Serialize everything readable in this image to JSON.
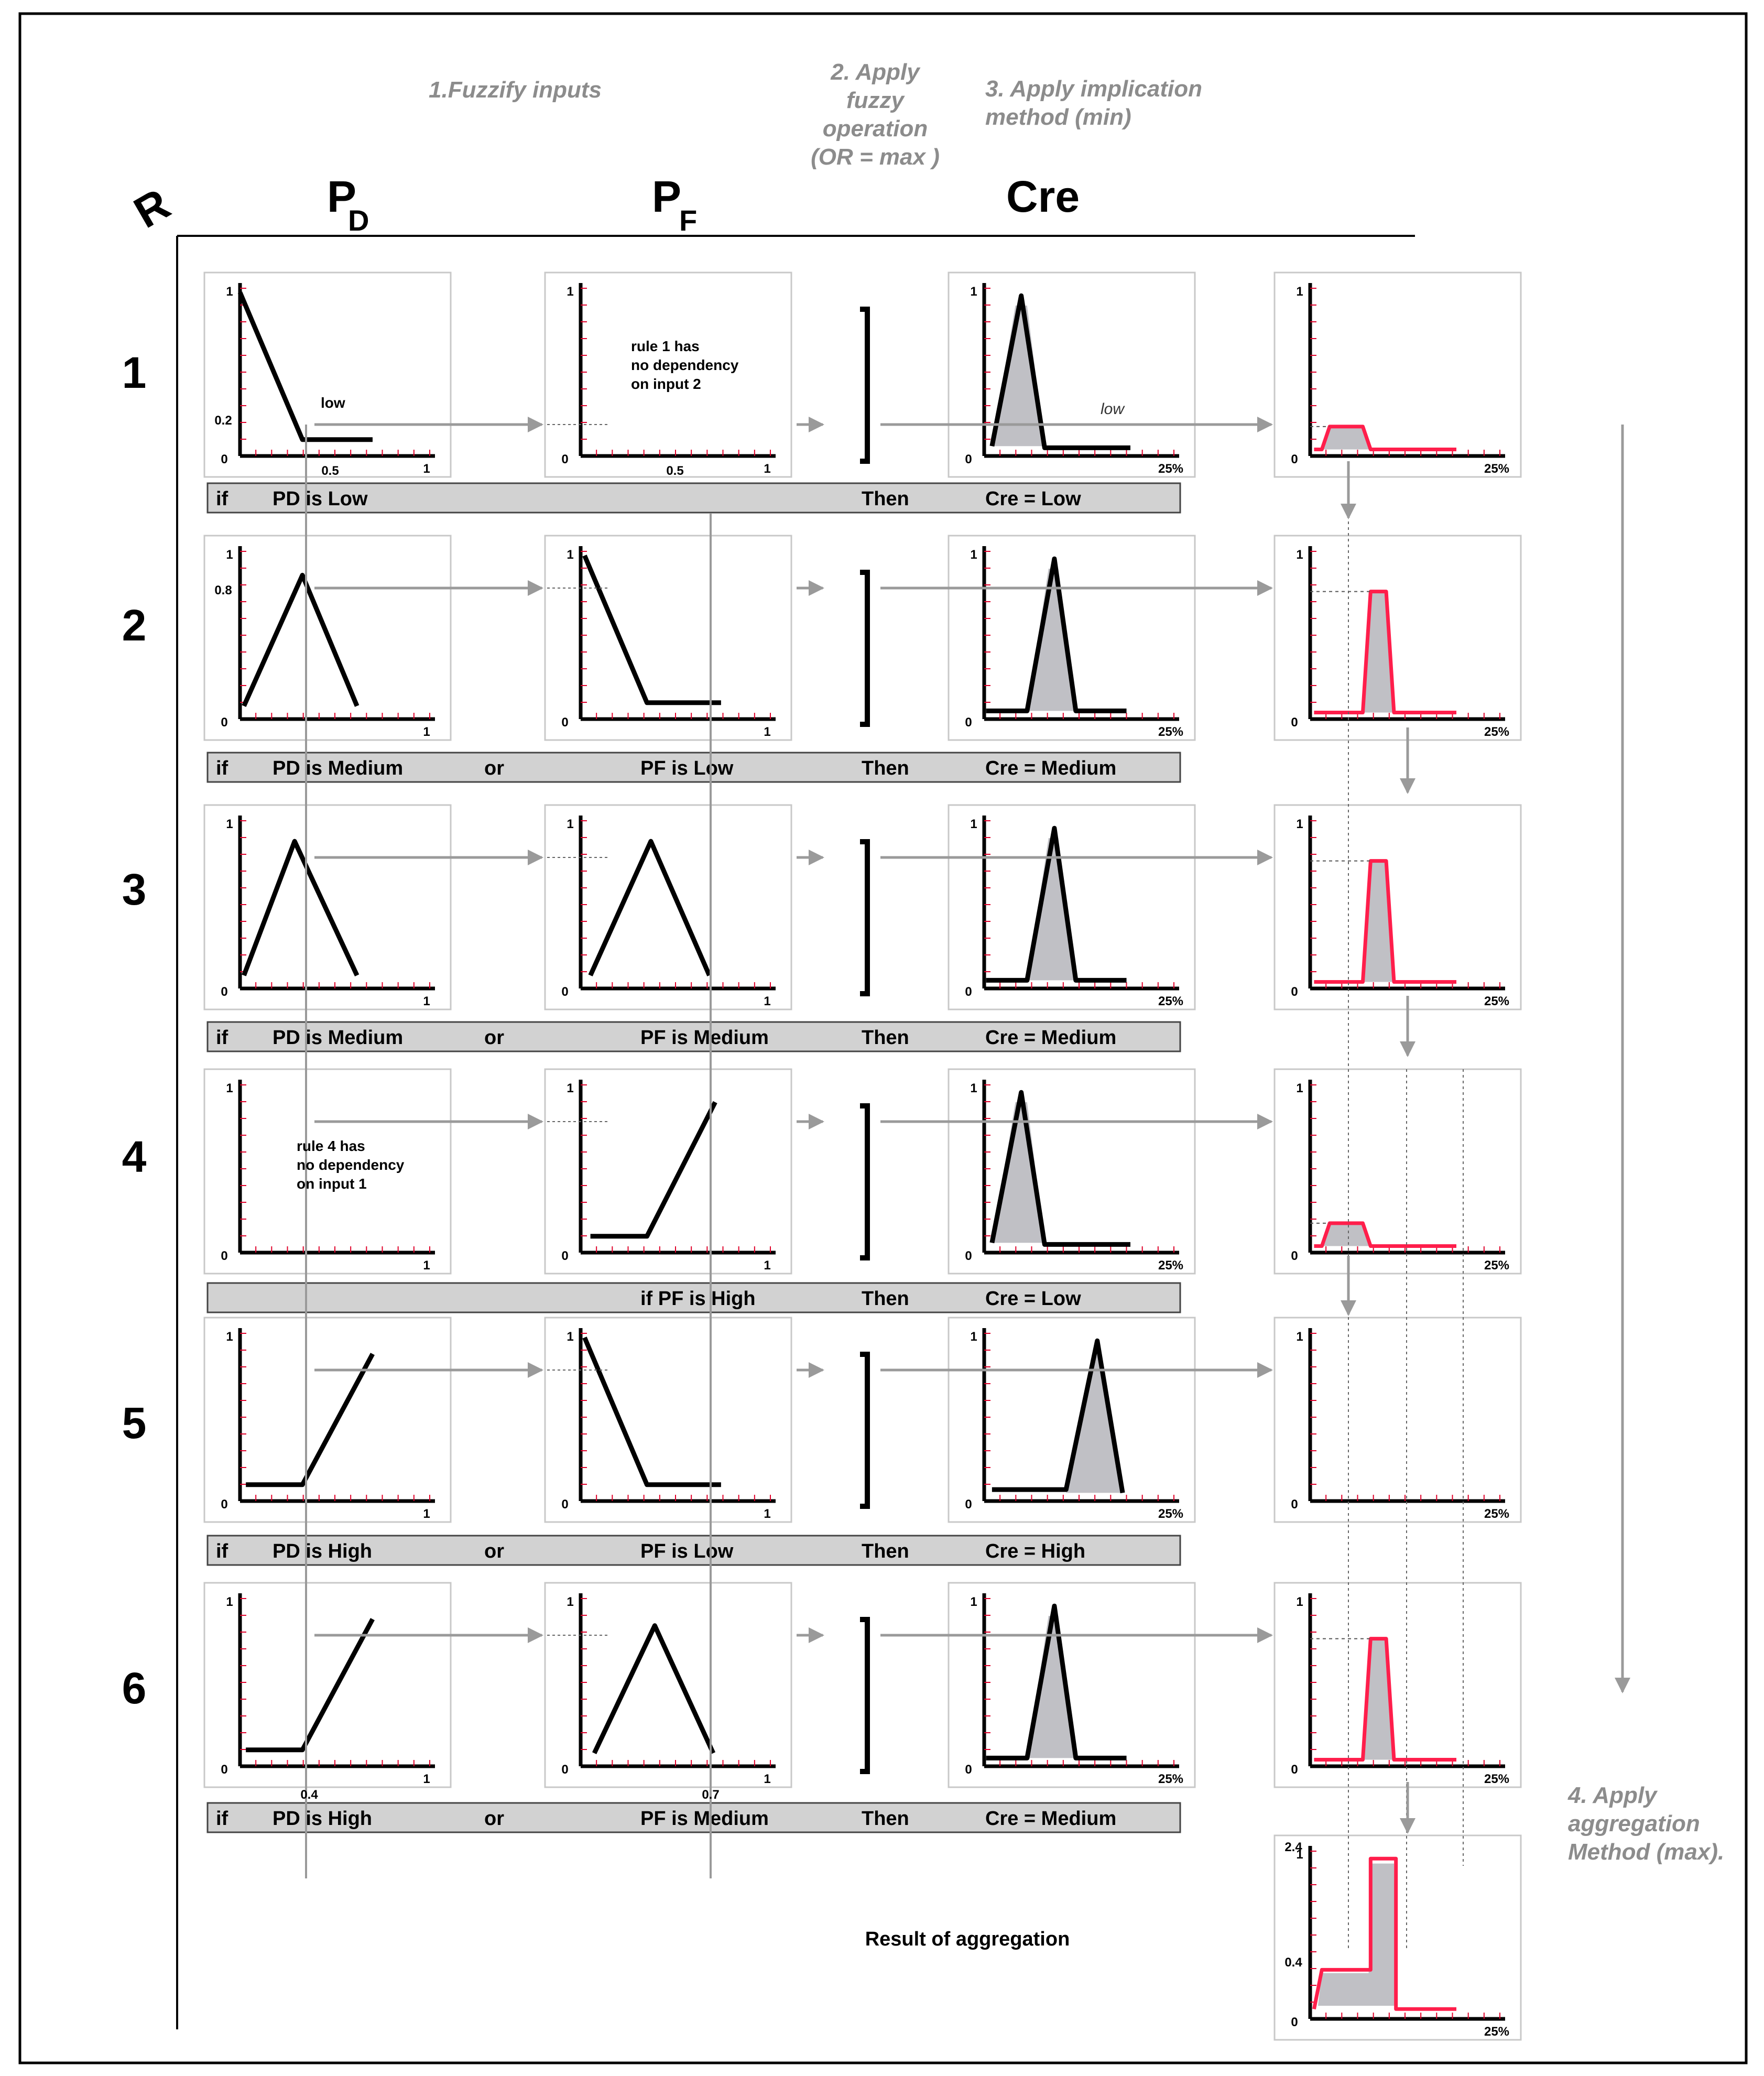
{
  "headers": {
    "step1": "1.Fuzzify inputs",
    "step2_lines": [
      "2. Apply",
      "fuzzy",
      "operation",
      "(OR = max )"
    ],
    "step3_lines": [
      "3. Apply implication",
      "method (min)"
    ],
    "step4_lines": [
      "4. Apply",
      "aggregation",
      "Method (max)."
    ]
  },
  "columns": {
    "rule": "R",
    "pd_main": "P",
    "pd_sub": "D",
    "pf_main": "P",
    "pf_sub": "F",
    "cre": "Cre"
  },
  "rule_numbers": [
    "1",
    "2",
    "3",
    "4",
    "5",
    "6"
  ],
  "rules": [
    {
      "if": "if",
      "pd": "PD is Low",
      "or": "",
      "pf": "",
      "then": "Then",
      "cre": "Cre = Low"
    },
    {
      "if": "if",
      "pd": "PD is Medium",
      "or": "or",
      "pf": "PF is Low",
      "then": "Then",
      "cre": "Cre = Medium"
    },
    {
      "if": "if",
      "pd": "PD is Medium",
      "or": "or",
      "pf": "PF is Medium",
      "then": "Then",
      "cre": "Cre = Medium"
    },
    {
      "if": "",
      "pd": "",
      "or": "",
      "pf": "if PF is High",
      "then": "Then",
      "cre": "Cre = Low"
    },
    {
      "if": "if",
      "pd": "PD is High",
      "or": "or",
      "pf": "PF is Low",
      "then": "Then",
      "cre": "Cre = High"
    },
    {
      "if": "if",
      "pd": "PD is High",
      "or": "or",
      "pf": "PF is Medium",
      "then": "Then",
      "cre": "Cre = Medium"
    }
  ],
  "ticks": {
    "zero": "0",
    "one": "1",
    "half": "0.5",
    "pct": "25%",
    "pd1_val": "0.2",
    "pd2_val": "0.8",
    "in1": "0.4",
    "in2": "0.7",
    "agg_top": "2.4",
    "agg_val": "0.4"
  },
  "notes": {
    "rule1": [
      "rule 1 has",
      "no dependency",
      "on input 2"
    ],
    "rule4": [
      "rule 4 has",
      "no dependency",
      "on input 1"
    ],
    "low_pd": "low",
    "low_cre": "low"
  },
  "result_label": "Result of aggregation",
  "colors": {
    "output_line": "#ff1e4b",
    "fill": "#c0c0c5",
    "arrow": "#9a9a9a",
    "bar": "#d2d2d2"
  }
}
